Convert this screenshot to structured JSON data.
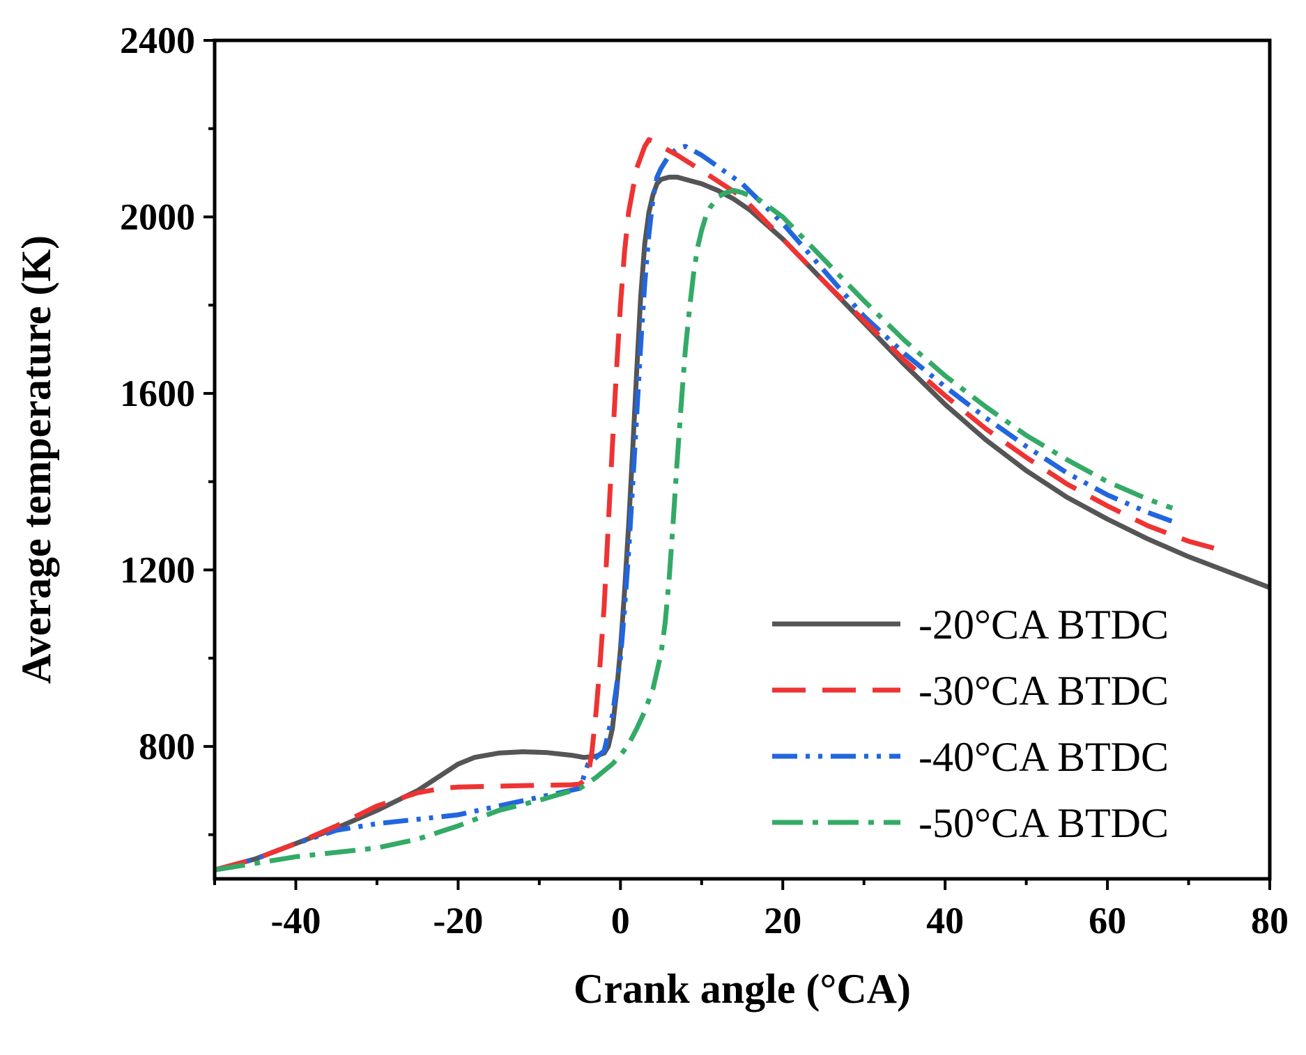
{
  "chart_data": {
    "type": "line",
    "title": "",
    "xlabel": "Crank angle (°CA)",
    "ylabel": "Average temperature (K)",
    "xlim": [
      -50,
      80
    ],
    "ylim": [
      500,
      2400
    ],
    "x_ticks": [
      -40,
      -20,
      0,
      20,
      40,
      60,
      80
    ],
    "x_tick_labels": [
      "-40",
      "-20",
      "0",
      "20",
      "40",
      "60",
      "80"
    ],
    "y_ticks": [
      800,
      1200,
      1600,
      2000,
      2400
    ],
    "y_tick_labels": [
      "800",
      "1200",
      "1600",
      "2000",
      "2400"
    ],
    "grid": false,
    "legend_position": "bottom-right",
    "series": [
      {
        "name": "-20°CA BTDC",
        "color": "#555555",
        "dash": "solid",
        "x": [
          -50,
          -45,
          -40,
          -35,
          -30,
          -25,
          -20,
          -18,
          -15,
          -12,
          -9,
          -6,
          -4.5,
          -3,
          -2,
          -1.5,
          -1,
          -0.5,
          0,
          0.5,
          1,
          1.5,
          2,
          2.5,
          3,
          3.5,
          4,
          4.5,
          5,
          6,
          7,
          8,
          10,
          12,
          14,
          16,
          20,
          25,
          30,
          35,
          40,
          45,
          50,
          55,
          60,
          65,
          70,
          75,
          80
        ],
        "y": [
          520,
          545,
          580,
          615,
          655,
          700,
          760,
          775,
          785,
          788,
          786,
          780,
          775,
          778,
          785,
          800,
          840,
          920,
          1020,
          1150,
          1300,
          1470,
          1650,
          1820,
          1940,
          2010,
          2050,
          2075,
          2085,
          2090,
          2090,
          2085,
          2075,
          2060,
          2040,
          2015,
          1950,
          1855,
          1760,
          1665,
          1575,
          1495,
          1425,
          1365,
          1315,
          1270,
          1230,
          1195,
          1160
        ]
      },
      {
        "name": "-30°CA BTDC",
        "color": "#ee3333",
        "dash": "long-dash",
        "x": [
          -50,
          -45,
          -40,
          -35,
          -30,
          -25,
          -22,
          -20,
          -15,
          -10,
          -6,
          -5,
          -4,
          -3.5,
          -3,
          -2.5,
          -2,
          -1.5,
          -1,
          -0.5,
          0,
          0.5,
          1,
          2,
          3,
          3.5,
          4,
          5,
          7,
          10,
          15,
          20,
          25,
          30,
          35,
          40,
          45,
          50,
          55,
          60,
          65,
          70,
          75
        ],
        "y": [
          520,
          545,
          580,
          620,
          665,
          695,
          705,
          708,
          710,
          712,
          713,
          715,
          730,
          790,
          880,
          990,
          1120,
          1300,
          1480,
          1650,
          1800,
          1920,
          2010,
          2110,
          2160,
          2175,
          2172,
          2160,
          2140,
          2105,
          2045,
          1950,
          1855,
          1765,
          1675,
          1595,
          1520,
          1455,
          1395,
          1345,
          1300,
          1265,
          1240
        ]
      },
      {
        "name": "-40°CA BTDC",
        "color": "#2266dd",
        "dash": "dash-dot-dot",
        "x": [
          -50,
          -45,
          -40,
          -35,
          -30,
          -25,
          -20,
          -15,
          -10,
          -5,
          -4,
          -3,
          -2,
          -1,
          0,
          0.5,
          1,
          1.5,
          2,
          2.5,
          3,
          3.5,
          4,
          4.5,
          5,
          6,
          7,
          8,
          10,
          15,
          20,
          25,
          30,
          35,
          40,
          45,
          50,
          55,
          60,
          65,
          68
        ],
        "y": [
          520,
          545,
          580,
          610,
          625,
          635,
          645,
          665,
          685,
          705,
          760,
          775,
          790,
          870,
          1000,
          1110,
          1240,
          1390,
          1550,
          1710,
          1850,
          1960,
          2040,
          2090,
          2110,
          2140,
          2155,
          2160,
          2140,
          2075,
          1985,
          1880,
          1775,
          1690,
          1615,
          1545,
          1480,
          1420,
          1370,
          1330,
          1310
        ]
      },
      {
        "name": "-50°CA BTDC",
        "color": "#33aa66",
        "dash": "dash-dot",
        "x": [
          -50,
          -45,
          -40,
          -35,
          -30,
          -28,
          -25,
          -20,
          -15,
          -10,
          -5,
          -3,
          -1,
          0,
          1,
          2,
          3,
          4,
          5,
          5.5,
          6,
          6.5,
          7,
          7.5,
          8,
          8.5,
          9,
          9.5,
          10,
          10.5,
          11,
          12,
          13,
          14,
          15,
          17,
          20,
          25,
          30,
          35,
          40,
          45,
          50,
          55,
          60,
          65,
          68
        ],
        "y": [
          520,
          535,
          550,
          560,
          570,
          578,
          590,
          620,
          655,
          678,
          705,
          730,
          760,
          780,
          805,
          840,
          880,
          930,
          1010,
          1080,
          1180,
          1310,
          1450,
          1580,
          1700,
          1790,
          1870,
          1930,
          1970,
          2000,
          2020,
          2045,
          2055,
          2060,
          2055,
          2040,
          2000,
          1905,
          1810,
          1720,
          1640,
          1570,
          1505,
          1450,
          1400,
          1360,
          1340
        ]
      }
    ]
  }
}
